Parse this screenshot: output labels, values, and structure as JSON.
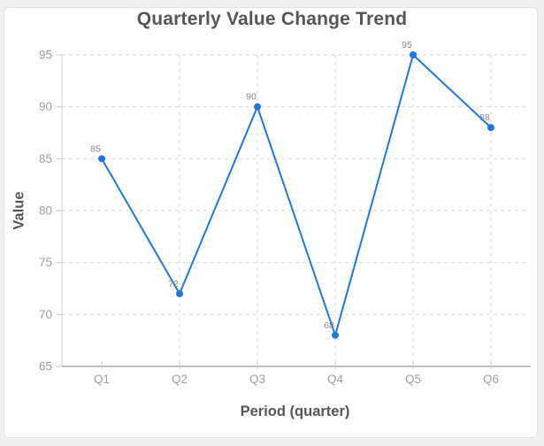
{
  "window": {
    "background": "#f0f0f1",
    "card_background": "#ffffff",
    "card_border": "#e3e3e4"
  },
  "chart_data": {
    "type": "line",
    "title": "Quarterly Value Change Trend",
    "xlabel": "Period (quarter)",
    "ylabel": "Value",
    "categories": [
      "Q1",
      "Q2",
      "Q3",
      "Q4",
      "Q5",
      "Q6"
    ],
    "values": [
      85,
      72,
      90,
      68,
      95,
      88
    ],
    "data_labels": [
      "85",
      "72",
      "90",
      "68",
      "95",
      "88"
    ],
    "ylim": [
      65,
      95
    ],
    "yticks": [
      65,
      70,
      75,
      80,
      85,
      90,
      95
    ],
    "grid": "dashed horizontal and vertical",
    "legend": "none",
    "colors": {
      "line": "#1f78e0",
      "marker": "#1f78e0",
      "title_text": "#54565a",
      "axis_title_text": "#54565a",
      "tick_text": "#9d9fa2",
      "data_label_text": "#85878a",
      "gridline": "#d9d9d9",
      "y_axis_line": "#d4d4d4",
      "x_axis_line": "#9a9a9a",
      "tick_mark": "#c9c9c9"
    }
  }
}
